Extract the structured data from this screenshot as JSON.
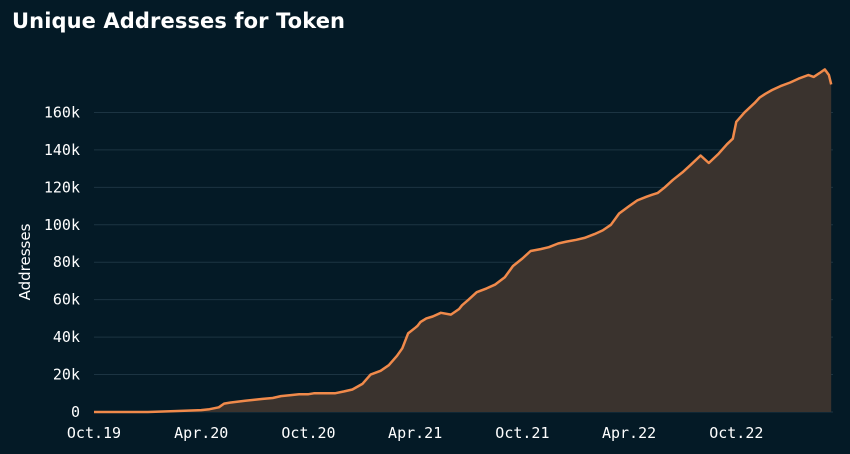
{
  "chart_data": {
    "type": "area",
    "title": "Unique Addresses for Token",
    "ylabel": "Addresses",
    "xlabel": "",
    "ylim": [
      0,
      180000
    ],
    "grid": true,
    "y_ticks": [
      0,
      20000,
      40000,
      60000,
      80000,
      100000,
      120000,
      140000,
      160000
    ],
    "y_tick_labels": [
      "0",
      "20k",
      "40k",
      "60k",
      "80k",
      "100k",
      "120k",
      "140k",
      "160k"
    ],
    "x_ticks": [
      "2019-10-01",
      "2020-04-01",
      "2020-10-01",
      "2021-04-01",
      "2021-10-01",
      "2022-04-01",
      "2022-10-01"
    ],
    "x_tick_labels": [
      "Oct.19",
      "Apr.20",
      "Oct.20",
      "Apr.21",
      "Oct.21",
      "Apr.22",
      "Oct.22"
    ],
    "xlim": [
      "2019-10-01",
      "2023-03-15"
    ],
    "colors": {
      "line": "#f08a4b",
      "fill": "#3a332e",
      "grid": "#1c3442",
      "background": "#041a26"
    },
    "series": [
      {
        "x": [
          "2019-10-01",
          "2019-11-15",
          "2020-01-01",
          "2020-02-15",
          "2020-04-01",
          "2020-04-15",
          "2020-05-01",
          "2020-05-10",
          "2020-05-20",
          "2020-06-01",
          "2020-06-15",
          "2020-07-01",
          "2020-07-15",
          "2020-08-01",
          "2020-08-15",
          "2020-09-01",
          "2020-09-15",
          "2020-10-01",
          "2020-10-10",
          "2020-10-20",
          "2020-11-01",
          "2020-11-15",
          "2020-12-01",
          "2020-12-15",
          "2021-01-01",
          "2021-01-15",
          "2021-02-01",
          "2021-02-15",
          "2021-03-01",
          "2021-03-10",
          "2021-03-20",
          "2021-04-01",
          "2021-04-05",
          "2021-04-10",
          "2021-04-20",
          "2021-05-01",
          "2021-05-15",
          "2021-06-01",
          "2021-06-15",
          "2021-06-20",
          "2021-07-01",
          "2021-07-15",
          "2021-08-01",
          "2021-08-15",
          "2021-09-01",
          "2021-09-15",
          "2021-10-01",
          "2021-10-15",
          "2021-11-01",
          "2021-11-15",
          "2021-12-01",
          "2021-12-15",
          "2022-01-01",
          "2022-01-15",
          "2022-02-01",
          "2022-02-15",
          "2022-03-01",
          "2022-03-15",
          "2022-04-01",
          "2022-04-15",
          "2022-05-01",
          "2022-05-10",
          "2022-05-20",
          "2022-06-01",
          "2022-06-15",
          "2022-07-01",
          "2022-07-15",
          "2022-08-01",
          "2022-08-15",
          "2022-09-01",
          "2022-09-15",
          "2022-09-25",
          "2022-10-01",
          "2022-10-15",
          "2022-11-01",
          "2022-11-10",
          "2022-11-20",
          "2022-12-01",
          "2022-12-15",
          "2023-01-01",
          "2023-01-15",
          "2023-02-01",
          "2023-02-10",
          "2023-02-20",
          "2023-03-01",
          "2023-03-08",
          "2023-03-12"
        ],
        "values": [
          0,
          0,
          0,
          500,
          1000,
          1500,
          2500,
          4500,
          5000,
          5500,
          6000,
          6500,
          7000,
          7500,
          8500,
          9000,
          9500,
          9500,
          10000,
          10000,
          10000,
          10000,
          11000,
          12000,
          15000,
          20000,
          22000,
          25000,
          30000,
          34000,
          42000,
          45000,
          46000,
          48000,
          50000,
          51000,
          53000,
          52000,
          55000,
          57000,
          60000,
          64000,
          66000,
          68000,
          72000,
          78000,
          82000,
          86000,
          87000,
          88000,
          90000,
          91000,
          92000,
          93000,
          95000,
          97000,
          100000,
          106000,
          110000,
          113000,
          115000,
          116000,
          117000,
          120000,
          124000,
          128000,
          132000,
          137000,
          133000,
          138000,
          143000,
          146000,
          155000,
          160000,
          165000,
          168000,
          170000,
          172000,
          174000,
          176000,
          178000,
          180000,
          179000,
          181000,
          183000,
          180000,
          175000
        ]
      }
    ]
  }
}
